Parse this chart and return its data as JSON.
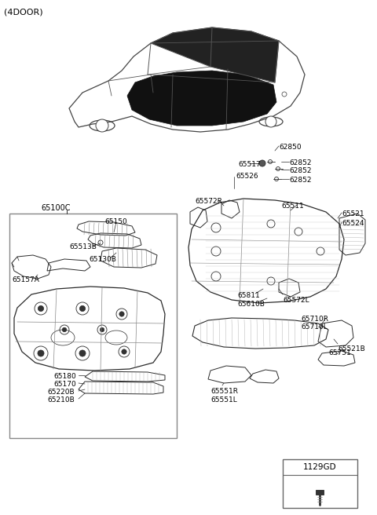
{
  "background_color": "#ffffff",
  "line_color": "#2a2a2a",
  "labels": {
    "top_left": "(4DOOR)",
    "box_label": "65100C",
    "part_65150": "65150",
    "part_65513B": "65513B",
    "part_65130B": "65130B",
    "part_65157A": "65157A",
    "part_65180": "65180",
    "part_65170": "65170",
    "part_65220B": "65220B",
    "part_65210B": "65210B",
    "part_62850": "62850",
    "part_62852a": "62852",
    "part_62852b": "62852",
    "part_62852c": "62852",
    "part_65517": "65517",
    "part_65526": "65526",
    "part_65572R": "65572R",
    "part_65511": "65511",
    "part_65521": "65521",
    "part_65524": "65524",
    "part_65811": "65811",
    "part_65572L": "65572L",
    "part_65610B": "65610B",
    "part_65710R": "65710R",
    "part_65710L": "65710L",
    "part_65521B": "65521B",
    "part_65751": "65751",
    "part_65551R": "65551R",
    "part_65551L": "65551L",
    "legend_code": "1129GD"
  },
  "figsize": [
    4.8,
    6.56
  ],
  "dpi": 100
}
